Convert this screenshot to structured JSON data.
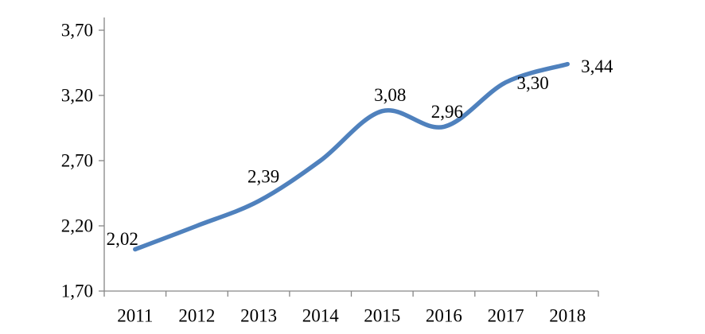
{
  "chart_data": {
    "type": "line",
    "title": "",
    "xlabel": "",
    "ylabel": "",
    "categories": [
      "2011",
      "2012",
      "2013",
      "2014",
      "2015",
      "2016",
      "2017",
      "2018"
    ],
    "series": [
      {
        "name": "series-1",
        "color": "#4F81BD",
        "values": [
          2.02,
          2.2,
          2.39,
          2.7,
          3.08,
          2.96,
          3.3,
          3.44
        ],
        "point_labels": [
          "2,02",
          null,
          "2,39",
          null,
          "3,08",
          "2,96",
          "3,30",
          "3,44"
        ]
      }
    ],
    "ylim": [
      1.7,
      3.7
    ],
    "y_ticks": [
      {
        "value": 1.7,
        "label": "1,70"
      },
      {
        "value": 2.2,
        "label": "2,20"
      },
      {
        "value": 2.7,
        "label": "2,70"
      },
      {
        "value": 3.2,
        "label": "3,20"
      },
      {
        "value": 3.7,
        "label": "3,70"
      }
    ],
    "grid": false,
    "legend": "none",
    "smooth": true,
    "decimal_separator": ",",
    "axis_color": "#868686",
    "text_color": "#000000",
    "label_offsets": [
      [
        -16,
        -13
      ],
      null,
      [
        6,
        -31
      ],
      null,
      [
        10,
        -20
      ],
      [
        4,
        -19
      ],
      [
        34,
        1
      ],
      [
        37,
        3
      ]
    ]
  }
}
